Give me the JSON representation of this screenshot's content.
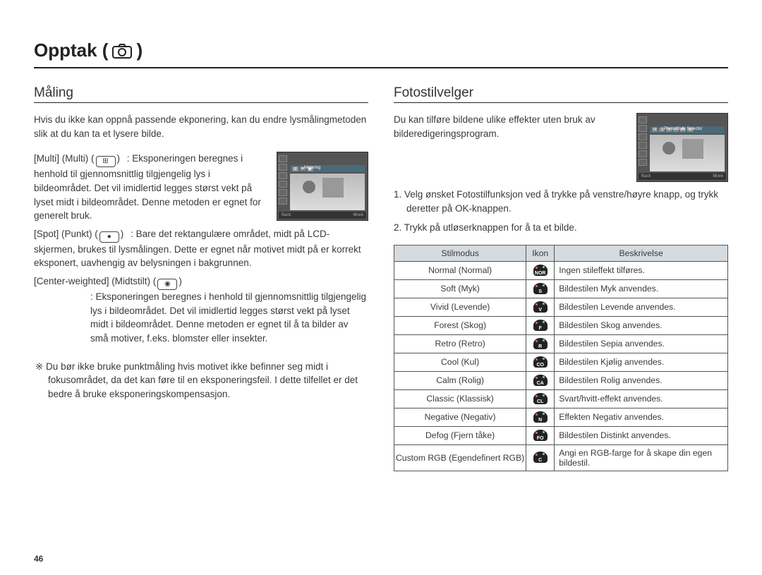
{
  "page_title_prefix": "Opptak (",
  "page_title_suffix": " )",
  "page_number": "46",
  "left": {
    "heading": "Måling",
    "intro": "Hvis du ikke kan oppnå passende ekponering, kan du endre lysmålingmetoden slik at du kan ta et lysere bilde.",
    "thumb_label": "Metering",
    "thumb_back": "Back",
    "thumb_move": "Move",
    "items": [
      {
        "term": "[Multi] (Multi) (",
        "icon_glyph": "⊞",
        "term_close": ")",
        "def_lead": ": Eksponeringen beregnes i henhold til gjennomsnittlig tilgjengelig lys i bildeområdet. Det vil imidlertid legges størst vekt på lyset midt i bildeområdet. Denne metoden er egnet for generelt bruk."
      },
      {
        "term": "[Spot] (Punkt) (",
        "icon_glyph": "●",
        "term_close": ")",
        "def_lead": ": Bare det rektangulære området, midt på LCD-skjermen, brukes til lysmålingen. Dette er egnet når motivet midt på er korrekt eksponert, uavhengig av belysningen i bakgrunnen."
      },
      {
        "term": "[Center-weighted] (Midtstilt) (",
        "icon_glyph": "◉",
        "term_close": ")",
        "def_lead": ": Eksponeringen beregnes i henhold til gjennomsnittlig tilgjengelig lys i bildeområdet. Det vil imidlertid legges størst vekt på lyset midt i bildeområdet. Denne metoden er egnet til å ta bilder av små motiver, f.eks. blomster eller insekter."
      }
    ],
    "note": "※ Du bør ikke bruke punktmåling hvis motivet ikke befinner seg midt i fokusområdet, da det kan føre til en eksponeringsfeil. I dette tilfellet er det bedre å bruke eksponeringskompensasjon."
  },
  "right": {
    "heading": "Fotostilvelger",
    "intro": "Du kan tilføre bildene ulike effekter uten bruk av bilderedigeringsprogram.",
    "thumb_label": "Photo Style Selector",
    "thumb_back": "Back",
    "thumb_move": "Move",
    "steps": [
      "1. Velg ønsket Fotostilfunksjon ved å trykke på venstre/høyre knapp, og trykk deretter på OK-knappen.",
      "2. Trykk på utløserknappen for å ta et bilde."
    ],
    "table": {
      "headers": [
        "Stilmodus",
        "Ikon",
        "Beskrivelse"
      ],
      "rows": [
        {
          "mode": "Normal (Normal)",
          "icon": "NOR",
          "desc": "Ingen stileffekt tilføres."
        },
        {
          "mode": "Soft (Myk)",
          "icon": "S",
          "desc": "Bildestilen Myk anvendes."
        },
        {
          "mode": "Vivid (Levende)",
          "icon": "V",
          "desc": "Bildestilen Levende anvendes."
        },
        {
          "mode": "Forest (Skog)",
          "icon": "F",
          "desc": "Bildestilen Skog anvendes."
        },
        {
          "mode": "Retro (Retro)",
          "icon": "R",
          "desc": "Bildestilen Sepia anvendes."
        },
        {
          "mode": "Cool (Kul)",
          "icon": "CO",
          "desc": "Bildestilen Kjølig anvendes."
        },
        {
          "mode": "Calm (Rolig)",
          "icon": "CA",
          "desc": "Bildestilen Rolig anvendes."
        },
        {
          "mode": "Classic (Klassisk)",
          "icon": "CL",
          "desc": "Svart/hvitt-effekt anvendes."
        },
        {
          "mode": "Negative (Negativ)",
          "icon": "N",
          "desc": "Effekten Negativ anvendes."
        },
        {
          "mode": "Defog (Fjern tåke)",
          "icon": "FO",
          "desc": "Bildestilen Distinkt anvendes."
        },
        {
          "mode": "Custom RGB (Egendefinert RGB)",
          "icon": "C",
          "desc": "Angi en RGB-farge for å skape din egen bildestil."
        }
      ]
    }
  },
  "colors": {
    "text": "#3a3a3a",
    "rule": "#222222",
    "table_header_bg": "#d6dbe0",
    "table_border": "#555555"
  }
}
